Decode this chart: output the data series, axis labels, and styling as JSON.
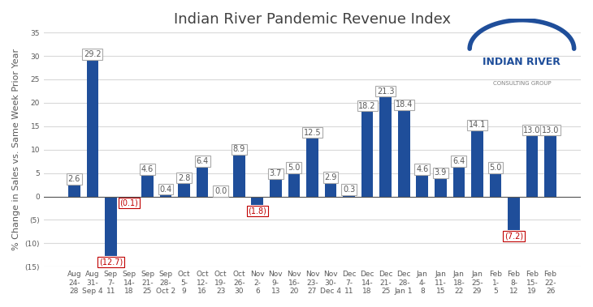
{
  "title": "Indian River Pandemic Revenue Index",
  "ylabel": "% Change in Sales vs. Same Week Prior Year",
  "categories": [
    "Aug\n24-\n28",
    "Aug\n31-\nSep 4",
    "Sep\n7-\n11",
    "Sep\n14-\n18",
    "Sep\n21-\n25",
    "Sep\n28-\nOct 2",
    "Oct\n5-\n9",
    "Oct\n12-\n16",
    "Oct\n19-\n23",
    "Oct\n26-\n30",
    "Nov\n2-\n6",
    "Nov\n9-\n13",
    "Nov\n16-\n20",
    "Nov\n23-\n27",
    "Nov\n30-\nDec 4",
    "Dec\n7-\n11",
    "Dec\n14-\n18",
    "Dec\n21-\n25",
    "Dec\n28-\nJan 1",
    "Jan\n4-\n8",
    "Jan\n11-\n15",
    "Jan\n18-\n22",
    "Jan\n25-\n29",
    "Feb\n1-\n5",
    "Feb\n8-\n12",
    "Feb\n15-\n19",
    "Feb\n22-\n26"
  ],
  "values": [
    2.6,
    29.2,
    -12.7,
    -0.1,
    4.6,
    0.4,
    2.8,
    6.4,
    0.0,
    8.9,
    -1.8,
    3.7,
    5.0,
    12.5,
    2.9,
    0.3,
    18.2,
    21.3,
    18.4,
    4.6,
    3.9,
    6.4,
    14.1,
    5.0,
    -7.2,
    13.0,
    13.0
  ],
  "labels": [
    "2.6",
    "29.2",
    "(12.7)",
    "(0.1)",
    "4.6",
    "0.4",
    "2.8",
    "6.4",
    "0.0",
    "8.9",
    "(1.8)",
    "3.7",
    "5.0",
    "12.5",
    "2.9",
    "0.3",
    "18.2",
    "21.3",
    "18.4",
    "4.6",
    "3.9",
    "6.4",
    "14.1",
    "5.0",
    "(7.2)",
    "13.0",
    "13.0"
  ],
  "bar_color": "#1F4E9A",
  "label_color_positive": "#595959",
  "label_color_negative": "#C00000",
  "ylim": [
    -15,
    35
  ],
  "yticks": [
    -15,
    -10,
    -5,
    0,
    5,
    10,
    15,
    20,
    25,
    30,
    35
  ],
  "ytick_labels": [
    "(15)",
    "(10)",
    "(5)",
    "0",
    "5",
    "10",
    "15",
    "20",
    "25",
    "30",
    "35"
  ],
  "background_color": "#FFFFFF",
  "grid_color": "#D9D9D9",
  "title_fontsize": 13,
  "label_fontsize": 7,
  "tick_fontsize": 6.5,
  "ylabel_fontsize": 8,
  "logo_main_color": "#1F4E9A",
  "logo_sub_color": "#808080"
}
